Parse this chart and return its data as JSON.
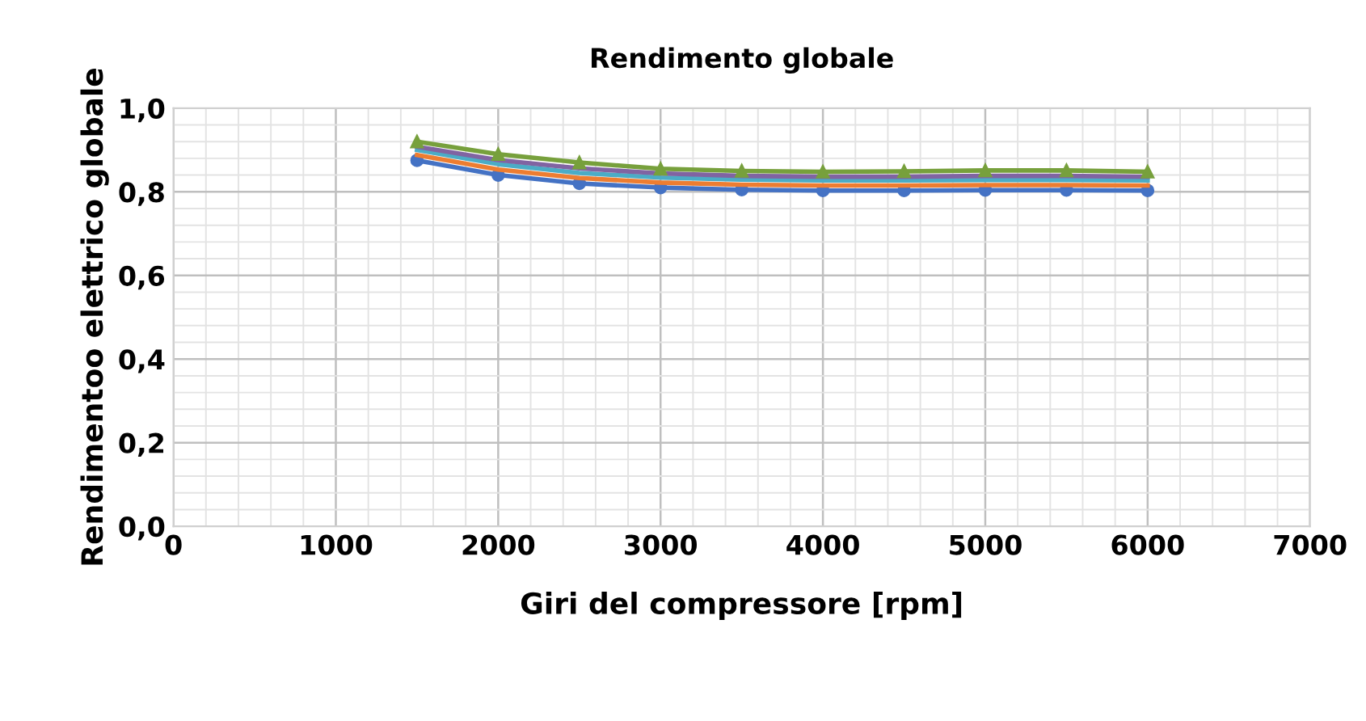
{
  "chart_data": {
    "type": "line",
    "title": "Rendimento globale",
    "xlabel": "Giri del compressore [rpm]",
    "ylabel": "Rendimentoo elettrico globale",
    "x": [
      1500,
      2000,
      2500,
      3000,
      3500,
      4000,
      4500,
      5000,
      5500,
      6000
    ],
    "series": [
      {
        "color": "#4472c4",
        "marker": "circle",
        "values": [
          0.875,
          0.84,
          0.82,
          0.81,
          0.805,
          0.803,
          0.803,
          0.804,
          0.804,
          0.803
        ]
      },
      {
        "color": "#ed7d31",
        "marker": "none",
        "values": [
          0.888,
          0.853,
          0.833,
          0.822,
          0.817,
          0.815,
          0.815,
          0.816,
          0.816,
          0.815
        ]
      },
      {
        "color": "#4bacc6",
        "marker": "none",
        "values": [
          0.9,
          0.866,
          0.845,
          0.834,
          0.829,
          0.827,
          0.827,
          0.828,
          0.828,
          0.827
        ]
      },
      {
        "color": "#8064a2",
        "marker": "none",
        "values": [
          0.908,
          0.876,
          0.856,
          0.844,
          0.838,
          0.836,
          0.836,
          0.838,
          0.838,
          0.836
        ]
      },
      {
        "color": "#77a03c",
        "marker": "triangle",
        "values": [
          0.92,
          0.89,
          0.87,
          0.855,
          0.85,
          0.848,
          0.849,
          0.851,
          0.851,
          0.848
        ]
      }
    ],
    "xlim": [
      0,
      7000
    ],
    "xticks": [
      0,
      1000,
      2000,
      3000,
      4000,
      5000,
      6000,
      7000
    ],
    "ylim": [
      0,
      1
    ],
    "yticks": [
      {
        "value": 0,
        "label": "0,0"
      },
      {
        "value": 0.2,
        "label": "0,2"
      },
      {
        "value": 0.4,
        "label": "0,4"
      },
      {
        "value": 0.6,
        "label": "0,6"
      },
      {
        "value": 0.8,
        "label": "0,8"
      },
      {
        "value": 1,
        "label": "1,0"
      }
    ],
    "grid": true,
    "legend": false
  }
}
